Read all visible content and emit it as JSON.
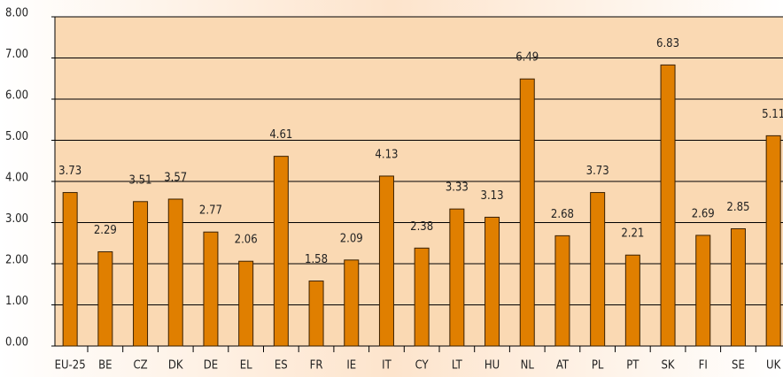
{
  "chart_data": {
    "type": "bar",
    "categories": [
      "EU-25",
      "BE",
      "CZ",
      "DK",
      "DE",
      "EL",
      "ES",
      "FR",
      "IE",
      "IT",
      "CY",
      "LT",
      "HU",
      "NL",
      "AT",
      "PL",
      "PT",
      "SK",
      "FI",
      "SE",
      "UK"
    ],
    "values": [
      3.73,
      2.29,
      3.51,
      3.57,
      2.77,
      2.06,
      4.61,
      1.58,
      2.09,
      4.13,
      2.38,
      3.33,
      3.13,
      6.49,
      2.68,
      3.73,
      2.21,
      6.83,
      2.69,
      2.85,
      5.11
    ],
    "color": "#e07f00",
    "ylim": [
      0,
      8
    ],
    "yticks": [
      {
        "value": 0,
        "label": "0.00"
      },
      {
        "value": 1,
        "label": "1.00"
      },
      {
        "value": 2,
        "label": "2.00"
      },
      {
        "value": 3,
        "label": "3.00"
      },
      {
        "value": 4,
        "label": "4.00"
      },
      {
        "value": 5,
        "label": "5.00"
      },
      {
        "value": 6,
        "label": "6.00"
      },
      {
        "value": 7,
        "label": "7.00"
      },
      {
        "value": 8,
        "label": "8.00"
      }
    ],
    "grid": true
  }
}
